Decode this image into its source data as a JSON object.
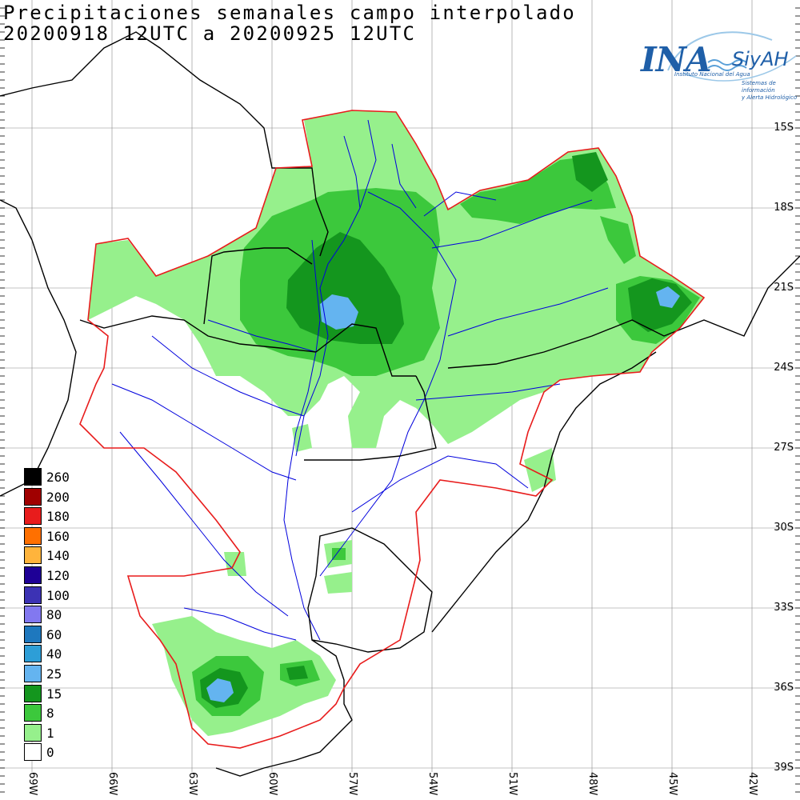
{
  "title": {
    "line1": "Precipitaciones semanales campo interpolado",
    "line2": "20200918 12UTC a 20200925 12UTC"
  },
  "logo": {
    "main": "INA",
    "sub": "SiyAH",
    "tag1": "Instituto Nacional del Agua",
    "tag2": "Sistemas de información",
    "tag3": "y Alerta Hidrológico"
  },
  "legend": [
    {
      "label": "260",
      "color": "#000000"
    },
    {
      "label": "200",
      "color": "#a00000"
    },
    {
      "label": "180",
      "color": "#e81c1c"
    },
    {
      "label": "160",
      "color": "#ff7000"
    },
    {
      "label": "140",
      "color": "#ffb43c"
    },
    {
      "label": "120",
      "color": "#1e0096"
    },
    {
      "label": "100",
      "color": "#3c32b4"
    },
    {
      "label": "80",
      "color": "#8278f0"
    },
    {
      "label": "60",
      "color": "#1e78be"
    },
    {
      "label": "40",
      "color": "#2d9ed7"
    },
    {
      "label": "25",
      "color": "#64b4f0"
    },
    {
      "label": "15",
      "color": "#14961e"
    },
    {
      "label": "8",
      "color": "#3cc83c"
    },
    {
      "label": "1",
      "color": "#96f08c"
    },
    {
      "label": "0",
      "color": "#ffffff"
    }
  ],
  "lat_labels": [
    "15S",
    "18S",
    "21S",
    "24S",
    "27S",
    "30S",
    "33S",
    "36S",
    "39S"
  ],
  "lon_labels": [
    "69W",
    "66W",
    "63W",
    "60W",
    "57W",
    "54W",
    "51W",
    "48W",
    "45W",
    "42W"
  ],
  "colors": {
    "light": "#96f08c",
    "mid": "#3cc83c",
    "dark": "#14961e",
    "blue": "#64b4f0",
    "basin": "#e81c1c",
    "river": "#0000dd",
    "border": "#000000",
    "grid": "#888888"
  }
}
